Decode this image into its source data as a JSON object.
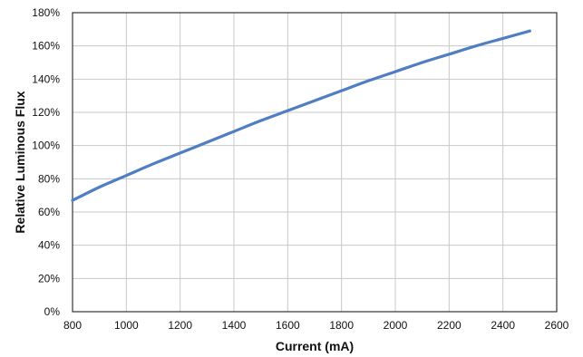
{
  "chart_data": {
    "type": "line",
    "title": "",
    "xlabel": "Current (mA)",
    "ylabel": "Relative Luminous Flux",
    "xlim": [
      800,
      2600
    ],
    "ylim": [
      0,
      180
    ],
    "x_ticks": [
      800,
      1000,
      1200,
      1400,
      1600,
      1800,
      2000,
      2200,
      2400,
      2600
    ],
    "x_tick_labels": [
      "800",
      "1000",
      "1200",
      "1400",
      "1600",
      "1800",
      "2000",
      "2200",
      "2400",
      "2600"
    ],
    "y_ticks": [
      0,
      20,
      40,
      60,
      80,
      100,
      120,
      140,
      160,
      180
    ],
    "y_tick_labels": [
      "0%",
      "20%",
      "40%",
      "60%",
      "80%",
      "100%",
      "120%",
      "140%",
      "160%",
      "180%"
    ],
    "grid": true,
    "legend": "none",
    "series": [
      {
        "color": "#4f7ec2",
        "x": [
          800,
          900,
          1000,
          1100,
          1200,
          1300,
          1400,
          1500,
          1600,
          1700,
          1800,
          1900,
          2000,
          2100,
          2200,
          2300,
          2400,
          2500
        ],
        "y": [
          67,
          75,
          82,
          89,
          95.5,
          102,
          108.5,
          115,
          121,
          127,
          133,
          139,
          144.5,
          150,
          155,
          160,
          164.5,
          169
        ]
      }
    ]
  }
}
